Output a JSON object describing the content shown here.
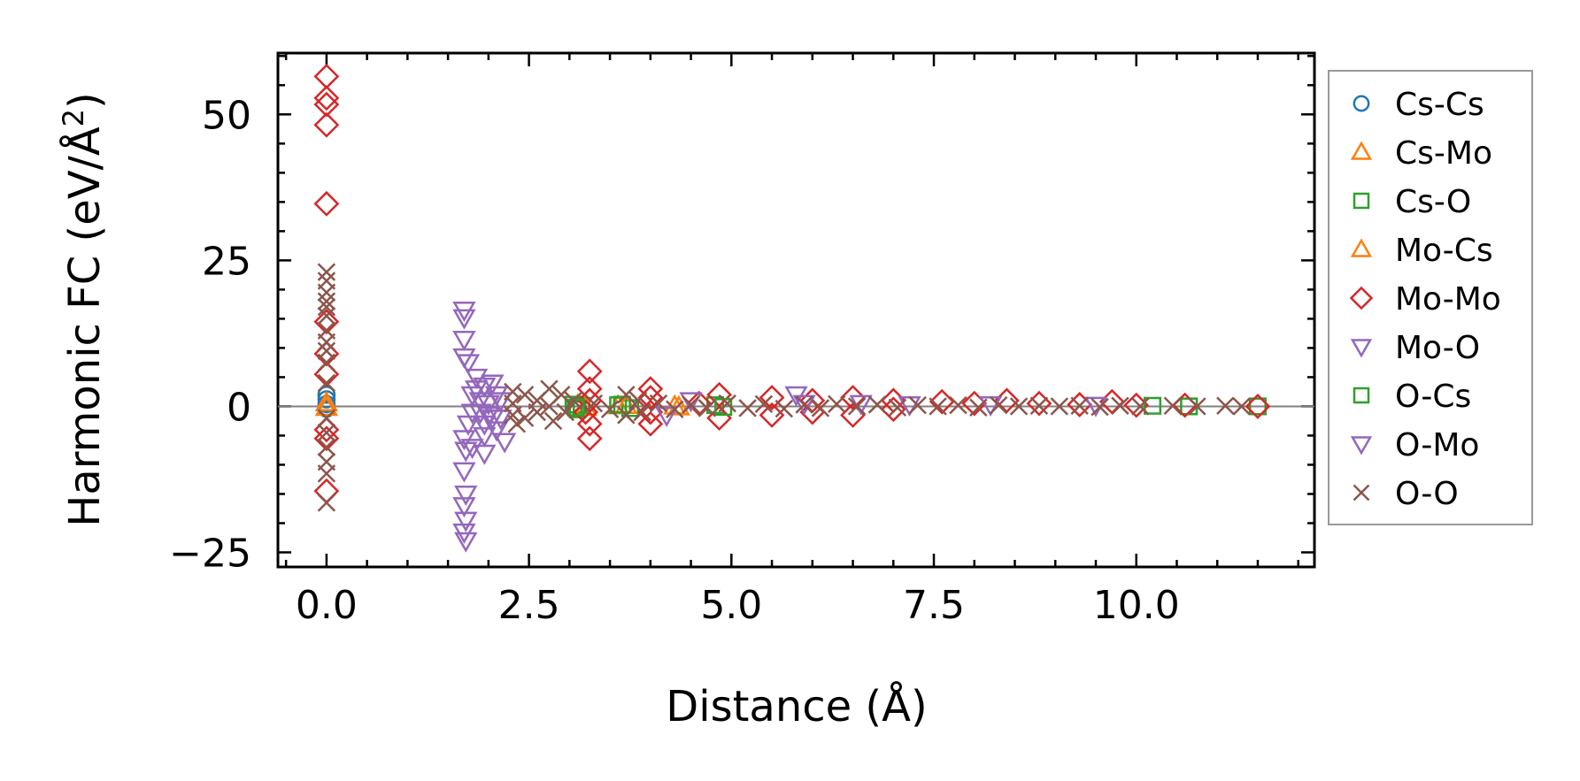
{
  "chart_data": {
    "type": "scatter",
    "xlabel": "Distance (Å)",
    "ylabel_main": "Harmonic FC (eV/Å",
    "ylabel_sup": "2",
    "ylabel_close": ")",
    "xlim": [
      -0.6,
      12.2
    ],
    "ylim": [
      -27.5,
      60.5
    ],
    "xticks": [
      0.0,
      2.5,
      5.0,
      7.5,
      10.0
    ],
    "xtick_labels": [
      "0.0",
      "2.5",
      "5.0",
      "7.5",
      "10.0"
    ],
    "yticks": [
      -25,
      0,
      25,
      50
    ],
    "ytick_labels": [
      "−25",
      "0",
      "25",
      "50"
    ],
    "zero_line": true,
    "legend_position": "right, outside plot",
    "series": [
      {
        "name": "Cs-Cs",
        "marker": "circle",
        "color": "#1f77b4",
        "points": [
          [
            0,
            2
          ],
          [
            0,
            1.2
          ],
          [
            0,
            0.4
          ],
          [
            0,
            -0.4
          ]
        ]
      },
      {
        "name": "Cs-Mo",
        "marker": "triangle-up",
        "color": "#ff7f0e",
        "points": [
          [
            0,
            0.6
          ],
          [
            3.1,
            0.2
          ],
          [
            3.6,
            0.1
          ],
          [
            4.3,
            0.05
          ]
        ]
      },
      {
        "name": "Cs-O",
        "marker": "square",
        "color": "#2ca02c",
        "points": [
          [
            3.05,
            0.3
          ],
          [
            3.1,
            -0.5
          ],
          [
            3.15,
            0.1
          ],
          [
            3.6,
            0.2
          ],
          [
            3.75,
            -0.3
          ],
          [
            4.8,
            0.2
          ],
          [
            10.65,
            0.0
          ],
          [
            11.5,
            0.0
          ]
        ]
      },
      {
        "name": "Mo-Cs",
        "marker": "triangle-up",
        "color": "#ff7f0e",
        "points": [
          [
            0,
            -0.2
          ],
          [
            3.2,
            -0.2
          ],
          [
            3.7,
            0.15
          ],
          [
            4.35,
            -0.1
          ]
        ]
      },
      {
        "name": "Mo-Mo",
        "marker": "diamond",
        "color": "#d62728",
        "points": [
          [
            0,
            56.5
          ],
          [
            0,
            52.8
          ],
          [
            0,
            51.7
          ],
          [
            0,
            48.2
          ],
          [
            0,
            34.7
          ],
          [
            0,
            14.5
          ],
          [
            0,
            9
          ],
          [
            0,
            5.5
          ],
          [
            0,
            -4
          ],
          [
            0,
            -5.5
          ],
          [
            0,
            -14.5
          ],
          [
            3.25,
            6
          ],
          [
            3.25,
            3
          ],
          [
            3.25,
            1
          ],
          [
            3.25,
            -3
          ],
          [
            3.25,
            -5.5
          ],
          [
            3.2,
            -1
          ],
          [
            4.0,
            3
          ],
          [
            4.0,
            1.5
          ],
          [
            4.0,
            -1
          ],
          [
            4.0,
            -3
          ],
          [
            4.6,
            0.5
          ],
          [
            4.85,
            2
          ],
          [
            4.85,
            -2
          ],
          [
            5.5,
            1.5
          ],
          [
            5.5,
            -1.5
          ],
          [
            6.0,
            1
          ],
          [
            6.0,
            -1
          ],
          [
            6.5,
            1.5
          ],
          [
            6.5,
            -1.5
          ],
          [
            7.0,
            1
          ],
          [
            7.0,
            -0.5
          ],
          [
            7.6,
            0.8
          ],
          [
            8.0,
            0.5
          ],
          [
            8.4,
            1
          ],
          [
            8.8,
            0.5
          ],
          [
            9.3,
            0.3
          ],
          [
            9.7,
            0.8
          ],
          [
            10.0,
            0.2
          ],
          [
            10.6,
            0.2
          ],
          [
            11.5,
            0
          ]
        ]
      },
      {
        "name": "Mo-O",
        "marker": "triangle-down",
        "color": "#9467bd",
        "points": [
          [
            1.7,
            16.5
          ],
          [
            1.7,
            15.2
          ],
          [
            1.7,
            11.5
          ],
          [
            1.7,
            8.5
          ],
          [
            1.75,
            7.5
          ],
          [
            1.7,
            -5.5
          ],
          [
            1.72,
            -7.5
          ],
          [
            1.7,
            -11
          ],
          [
            1.72,
            -15
          ],
          [
            1.7,
            -17
          ],
          [
            1.72,
            -19.5
          ],
          [
            1.7,
            -21.5
          ],
          [
            1.72,
            -23
          ],
          [
            1.85,
            5
          ],
          [
            1.85,
            3
          ],
          [
            1.9,
            1
          ],
          [
            1.9,
            -1
          ],
          [
            1.95,
            -3
          ],
          [
            1.95,
            -5
          ],
          [
            1.95,
            -8
          ],
          [
            2.05,
            4
          ],
          [
            2.05,
            -2
          ],
          [
            2.1,
            2
          ],
          [
            2.1,
            -4
          ],
          [
            4.2,
            -1.5
          ],
          [
            4.5,
            1
          ],
          [
            5.8,
            2
          ],
          [
            5.9,
            0.5
          ],
          [
            6.6,
            0.5
          ],
          [
            7.2,
            0.3
          ],
          [
            8.2,
            0.3
          ],
          [
            9.5,
            0.2
          ]
        ]
      },
      {
        "name": "O-Cs",
        "marker": "square",
        "color": "#2ca02c",
        "points": [
          [
            3.08,
            -0.2
          ],
          [
            3.65,
            0.3
          ],
          [
            4.9,
            -0.1
          ],
          [
            10.2,
            0.1
          ]
        ]
      },
      {
        "name": "O-Mo",
        "marker": "triangle-down",
        "color": "#9467bd",
        "points": [
          [
            1.8,
            2
          ],
          [
            1.8,
            -1
          ],
          [
            1.75,
            -3
          ],
          [
            1.8,
            -7
          ],
          [
            1.95,
            3.5
          ],
          [
            2.0,
            0.5
          ],
          [
            2.0,
            -1.5
          ],
          [
            2.15,
            1
          ],
          [
            2.15,
            -2
          ],
          [
            2.2,
            -6
          ]
        ]
      },
      {
        "name": "O-O",
        "marker": "x",
        "color": "#8c564b",
        "points": [
          [
            0,
            23
          ],
          [
            0,
            21.5
          ],
          [
            0,
            19.5
          ],
          [
            0,
            18
          ],
          [
            0,
            17
          ],
          [
            0,
            15.5
          ],
          [
            0,
            13
          ],
          [
            0,
            11
          ],
          [
            0,
            9.5
          ],
          [
            0,
            7.5
          ],
          [
            0,
            4
          ],
          [
            0,
            -2
          ],
          [
            0,
            -4.5
          ],
          [
            0,
            -7
          ],
          [
            0,
            -9.5
          ],
          [
            0,
            -11.5
          ],
          [
            0,
            -16.5
          ],
          [
            2.3,
            2.5
          ],
          [
            2.3,
            0.5
          ],
          [
            2.3,
            -1.5
          ],
          [
            2.35,
            -3
          ],
          [
            2.45,
            2
          ],
          [
            2.45,
            -2
          ],
          [
            2.6,
            1
          ],
          [
            2.6,
            -1
          ],
          [
            2.75,
            3
          ],
          [
            2.75,
            0
          ],
          [
            2.8,
            -2.5
          ],
          [
            2.9,
            2
          ],
          [
            2.95,
            -1
          ],
          [
            3.05,
            1
          ],
          [
            3.3,
            0.5
          ],
          [
            3.5,
            -0.5
          ],
          [
            3.7,
            2
          ],
          [
            3.7,
            -1.5
          ],
          [
            3.85,
            1
          ],
          [
            3.9,
            -1
          ],
          [
            4.1,
            0.5
          ],
          [
            4.3,
            -0.5
          ],
          [
            4.5,
            0.3
          ],
          [
            4.7,
            -0.3
          ],
          [
            4.95,
            0.5
          ],
          [
            5.2,
            -0.3
          ],
          [
            5.4,
            0.4
          ],
          [
            5.65,
            -0.4
          ],
          [
            5.9,
            0.3
          ],
          [
            6.1,
            -0.3
          ],
          [
            6.3,
            0.4
          ],
          [
            6.55,
            0
          ],
          [
            6.8,
            0.3
          ],
          [
            7.05,
            -0.2
          ],
          [
            7.3,
            0.2
          ],
          [
            7.55,
            0
          ],
          [
            7.8,
            0.2
          ],
          [
            8.05,
            -0.2
          ],
          [
            8.3,
            0.2
          ],
          [
            8.55,
            0
          ],
          [
            8.8,
            0.1
          ],
          [
            9.05,
            0
          ],
          [
            9.3,
            0.1
          ],
          [
            9.55,
            -0.1
          ],
          [
            9.8,
            0.1
          ],
          [
            10.05,
            0
          ],
          [
            10.45,
            0.1
          ],
          [
            10.75,
            0
          ],
          [
            11.1,
            0.1
          ],
          [
            11.3,
            0
          ]
        ]
      }
    ]
  }
}
